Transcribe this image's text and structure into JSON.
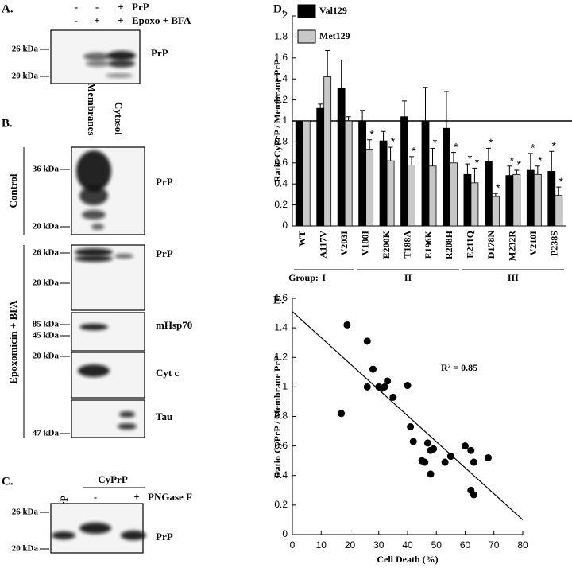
{
  "figure": {
    "panel_a": {
      "letter": "A.",
      "rows": [
        {
          "label": "PrP",
          "signs": [
            "-",
            "-",
            "+"
          ]
        },
        {
          "label": "Epoxo + BFA",
          "signs": [
            "-",
            "+",
            "+"
          ]
        }
      ],
      "markers": [
        "26 kDa",
        "20 kDa"
      ],
      "band_label": "PrP"
    },
    "panel_b": {
      "letter": "B.",
      "columns": [
        "Membranes",
        "Cytosol"
      ],
      "conditions": [
        "Control",
        "Epoxomicin + BFA"
      ],
      "blots": [
        {
          "markers": [
            "36 kDa",
            "20 kDa"
          ],
          "label": "PrP"
        },
        {
          "markers": [
            "26 kDa",
            "20 kDa"
          ],
          "label": "PrP"
        },
        {
          "markers": [
            "85 kDa",
            "45 kDa"
          ],
          "label": "mHsp70"
        },
        {
          "markers": [
            "20 kDa"
          ],
          "label": "Cyt c"
        },
        {
          "markers": [
            "47 kDa"
          ],
          "label": "Tau"
        }
      ]
    },
    "panel_c": {
      "letter": "C.",
      "lanes": [
        "rPrP",
        "CyPrP"
      ],
      "treatment": {
        "label": "PNGase F",
        "signs": [
          "-",
          "+"
        ]
      },
      "markers": [
        "26 kDa",
        "20 kDa"
      ],
      "band_label": "PrP"
    },
    "panel_d_letter": "D.",
    "panel_e_letter": "E."
  },
  "chart_data": [
    {
      "type": "bar",
      "ylabel": "Ratio CyPrP / Membrane PrP",
      "categories": [
        "WT",
        "A117V",
        "V203I",
        "V180I",
        "E200K",
        "T188A",
        "E196K",
        "R208H",
        "E211Q",
        "D178N",
        "M232R",
        "V210I",
        "P238S"
      ],
      "series": [
        {
          "name": "Val129",
          "color": "#000000",
          "values": [
            1,
            1.12,
            1.31,
            1.0,
            0.81,
            1.04,
            1.0,
            0.93,
            0.49,
            0.61,
            0.48,
            0.53,
            0.52
          ],
          "errors": [
            0,
            0.04,
            0.27,
            0.1,
            0.09,
            0.15,
            0.32,
            0.35,
            0.1,
            0.13,
            0.09,
            0.16,
            0.19
          ],
          "markers": [
            null,
            null,
            null,
            null,
            null,
            null,
            null,
            null,
            "*",
            "*",
            "*",
            "*",
            "*"
          ]
        },
        {
          "name": "Met129",
          "color": "#c8c8c8",
          "values": [
            1,
            1.42,
            1.0,
            0.73,
            0.62,
            0.58,
            0.57,
            0.6,
            0.41,
            0.28,
            0.49,
            0.49,
            0.29
          ],
          "errors": [
            0,
            0.25,
            0.04,
            0.09,
            0.13,
            0.08,
            0.17,
            0.1,
            0.14,
            0.03,
            0.04,
            0.08,
            0.08
          ],
          "markers": [
            null,
            null,
            null,
            "*",
            "*",
            "*",
            "*",
            "*",
            "*",
            "*",
            "*",
            "*",
            "*"
          ]
        }
      ],
      "reference_line": 1,
      "group_label": "Group:",
      "groups": [
        {
          "label": "I",
          "size": 3
        },
        {
          "label": "II",
          "size": 5
        },
        {
          "label": "III",
          "size": 5
        }
      ],
      "ylim": [
        0,
        2
      ],
      "yticks": [
        0,
        0.2,
        0.4,
        0.6,
        0.8,
        1,
        1.2,
        1.4,
        1.6,
        1.8,
        2
      ]
    },
    {
      "type": "scatter",
      "xlabel": "Cell Death (%)",
      "ylabel": "Ratio CyPrP / Membrane PrP",
      "annotation": "R² = 0.85",
      "color": "#000000",
      "x": [
        19,
        26,
        17,
        26,
        28,
        30,
        31,
        32,
        33,
        35,
        40,
        41,
        42,
        45,
        46,
        47,
        48,
        48,
        49,
        53,
        55,
        60,
        62,
        62,
        63,
        63,
        68
      ],
      "values": [
        1.42,
        1.31,
        0.82,
        1.0,
        1.12,
        1.0,
        0.99,
        1.0,
        1.04,
        0.93,
        1.01,
        0.73,
        0.63,
        0.5,
        0.49,
        0.62,
        0.41,
        0.57,
        0.58,
        0.49,
        0.53,
        0.6,
        0.57,
        0.3,
        0.27,
        0.49,
        0.52
      ],
      "trendline": {
        "x": [
          0,
          80
        ],
        "values": [
          1.51,
          0.1
        ]
      },
      "xlim": [
        0,
        80
      ],
      "xticks": [
        0,
        10,
        20,
        30,
        40,
        50,
        60,
        70,
        80
      ],
      "ylim": [
        0,
        1.6
      ],
      "yticks": [
        0,
        0.2,
        0.4,
        0.6,
        0.8,
        1,
        1.2,
        1.4,
        1.6
      ]
    }
  ]
}
